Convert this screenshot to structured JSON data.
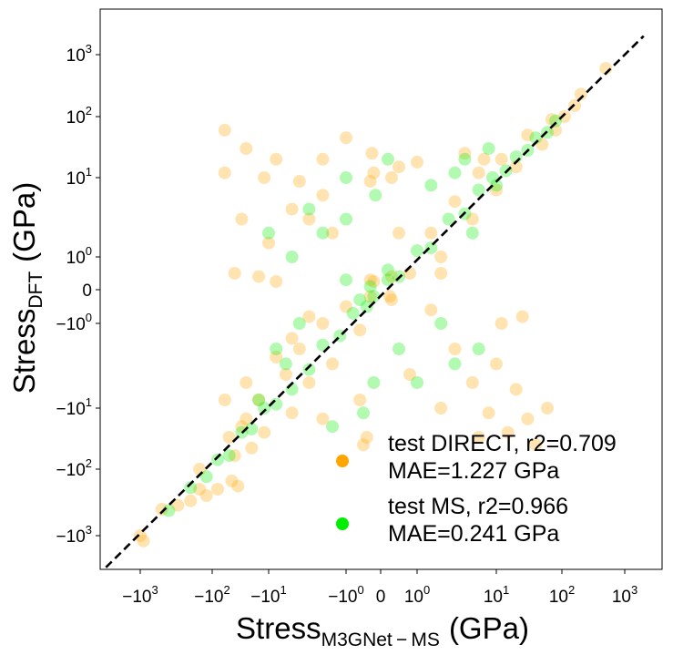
{
  "chart_data": {
    "type": "scatter",
    "scale": "symlog",
    "xlabel": {
      "base": "Stress",
      "subscript": "M3GNet − MS",
      "unit": "(GPa)"
    },
    "ylabel": {
      "base": "Stress",
      "subscript": "DFT",
      "unit": "(GPa)"
    },
    "xlim": [
      -5000,
      5000
    ],
    "ylim": [
      -5000,
      5000
    ],
    "x_ticks": [
      {
        "value": -1000,
        "base": "−10",
        "exp": "3"
      },
      {
        "value": -100,
        "base": "−10",
        "exp": "2"
      },
      {
        "value": -10,
        "base": "−10",
        "exp": "1"
      },
      {
        "value": -1,
        "base": "−10",
        "exp": "0"
      },
      {
        "value": 0,
        "base": "0",
        "exp": ""
      },
      {
        "value": 1,
        "base": "10",
        "exp": "0"
      },
      {
        "value": 10,
        "base": "10",
        "exp": "1"
      },
      {
        "value": 100,
        "base": "10",
        "exp": "2"
      },
      {
        "value": 1000,
        "base": "10",
        "exp": "3"
      }
    ],
    "y_ticks": [
      {
        "value": 1000,
        "base": "10",
        "exp": "3"
      },
      {
        "value": 100,
        "base": "10",
        "exp": "2"
      },
      {
        "value": 10,
        "base": "10",
        "exp": "1"
      },
      {
        "value": 1,
        "base": "10",
        "exp": "0"
      },
      {
        "value": 0,
        "base": "0",
        "exp": ""
      },
      {
        "value": -1,
        "base": "−10",
        "exp": "0"
      },
      {
        "value": -10,
        "base": "−10",
        "exp": "1"
      },
      {
        "value": -100,
        "base": "−10",
        "exp": "2"
      },
      {
        "value": -1000,
        "base": "−10",
        "exp": "3"
      }
    ],
    "parity_line": {
      "from": -3000,
      "to": 2000,
      "style": "dashed",
      "color": "#000000"
    },
    "series": [
      {
        "name": "test DIRECT",
        "r2": "0.709",
        "mae": "1.227 GPa",
        "color": "#ffa500",
        "alpha": 0.3,
        "points": [
          [
            -1000,
            -1000
          ],
          [
            -900,
            -1200
          ],
          [
            -500,
            -400
          ],
          [
            -300,
            -350
          ],
          [
            -150,
            -100
          ],
          [
            -120,
            -250
          ],
          [
            -80,
            -200
          ],
          [
            -50,
            -30
          ],
          [
            -40,
            -60
          ],
          [
            -25,
            -15
          ],
          [
            -20,
            -45
          ],
          [
            -15,
            -8
          ],
          [
            -12,
            -25
          ],
          [
            -6,
            -4
          ],
          [
            -5,
            -12
          ],
          [
            -4,
            -2
          ],
          [
            -3,
            -5
          ],
          [
            -2,
            -1
          ],
          [
            -1.5,
            -3
          ],
          [
            -1,
            -0.5
          ],
          [
            -0.6,
            -1.2
          ],
          [
            -0.3,
            -0.2
          ],
          [
            0.3,
            0.4
          ],
          [
            0.8,
            0.5
          ],
          [
            1.5,
            2
          ],
          [
            2,
            1
          ],
          [
            3,
            5
          ],
          [
            5,
            3
          ],
          [
            6,
            12
          ],
          [
            10,
            7
          ],
          [
            12,
            20
          ],
          [
            20,
            15
          ],
          [
            30,
            50
          ],
          [
            50,
            35
          ],
          [
            70,
            90
          ],
          [
            80,
            60
          ],
          [
            110,
            100
          ],
          [
            160,
            150
          ],
          [
            200,
            230
          ],
          [
            500,
            600
          ],
          [
            -0.3,
            9
          ],
          [
            -0.2,
            12
          ],
          [
            -0.25,
            25
          ],
          [
            -60,
            60
          ],
          [
            -60,
            12
          ],
          [
            -25,
            30
          ],
          [
            -12,
            10
          ],
          [
            -8,
            20
          ],
          [
            -5,
            4
          ],
          [
            -4,
            9
          ],
          [
            -3,
            3
          ],
          [
            -1.5,
            2
          ],
          [
            -2,
            6
          ],
          [
            -10,
            1.5
          ],
          [
            -30,
            3
          ],
          [
            -40,
            0.5
          ],
          [
            -15,
            0.4
          ],
          [
            -8,
            0.25
          ],
          [
            -2,
            20
          ],
          [
            -1,
            45
          ],
          [
            0.3,
            10
          ],
          [
            0.5,
            15
          ],
          [
            1,
            18
          ],
          [
            4,
            25
          ],
          [
            7,
            20
          ],
          [
            10,
            -3
          ],
          [
            20,
            -6
          ],
          [
            30,
            -15
          ],
          [
            40,
            -40
          ],
          [
            15,
            -25
          ],
          [
            8,
            -12
          ],
          [
            5,
            -5
          ],
          [
            3,
            -2
          ],
          [
            12,
            -1
          ],
          [
            25,
            -0.8
          ],
          [
            60,
            -10
          ],
          [
            6,
            -30
          ],
          [
            2,
            -10
          ],
          [
            1.5,
            -0.6
          ],
          [
            0.8,
            -4
          ],
          [
            -0.5,
            -40
          ],
          [
            -0.4,
            -30
          ],
          [
            -2,
            -15
          ],
          [
            -0.6,
            -8
          ],
          [
            -30,
            -20
          ],
          [
            -45,
            -150
          ],
          [
            -35,
            -180
          ],
          [
            -200,
            -300
          ],
          [
            -150,
            -200
          ],
          [
            -5,
            -1.5
          ],
          [
            -3,
            -0.8
          ],
          [
            -8,
            -2.5
          ],
          [
            -25,
            -5
          ],
          [
            -60,
            -8
          ],
          [
            -0.3,
            0.3
          ],
          [
            0.3,
            -0.3
          ],
          [
            -0.2,
            0.25
          ],
          [
            0.25,
            -0.2
          ],
          [
            2,
            0.5
          ],
          [
            0.5,
            2
          ]
        ]
      },
      {
        "name": "test MS",
        "r2": "0.966",
        "mae": "0.241 GPa",
        "color": "#00ee00",
        "alpha": 0.3,
        "points": [
          [
            -400,
            -420
          ],
          [
            -200,
            -190
          ],
          [
            -120,
            -130
          ],
          [
            -80,
            -70
          ],
          [
            -50,
            -60
          ],
          [
            -30,
            -25
          ],
          [
            -20,
            -22
          ],
          [
            -12,
            -10
          ],
          [
            -8,
            -9
          ],
          [
            -5,
            -6
          ],
          [
            -3,
            -3.5
          ],
          [
            -2,
            -1.8
          ],
          [
            -1.2,
            -1.4
          ],
          [
            -0.8,
            -0.7
          ],
          [
            -0.4,
            -0.5
          ],
          [
            -0.2,
            -0.2
          ],
          [
            0.2,
            0.3
          ],
          [
            0.5,
            0.4
          ],
          [
            1,
            1.2
          ],
          [
            1.5,
            1.3
          ],
          [
            2.5,
            3
          ],
          [
            4,
            3.5
          ],
          [
            6,
            7
          ],
          [
            9,
            10
          ],
          [
            14,
            13
          ],
          [
            20,
            22
          ],
          [
            30,
            28
          ],
          [
            40,
            45
          ],
          [
            60,
            55
          ],
          [
            80,
            85
          ],
          [
            -3,
            4
          ],
          [
            -2,
            2
          ],
          [
            -1,
            3
          ],
          [
            -4,
            -1
          ],
          [
            -1,
            10
          ],
          [
            1.5,
            8
          ],
          [
            2,
            -1
          ],
          [
            3,
            -3
          ],
          [
            0.5,
            -2
          ],
          [
            0.2,
            20
          ],
          [
            -0.15,
            6
          ],
          [
            -0.2,
            -5
          ],
          [
            -6,
            -3
          ],
          [
            -8,
            -2
          ],
          [
            -10,
            2
          ],
          [
            -5,
            1
          ],
          [
            3,
            12
          ],
          [
            5,
            2
          ],
          [
            4,
            20
          ],
          [
            -0.3,
            0.1
          ],
          [
            0.2,
            0.6
          ],
          [
            6,
            -2
          ],
          [
            10,
            8
          ],
          [
            -0.6,
            -0.3
          ],
          [
            -15,
            -8
          ],
          [
            8,
            30
          ],
          [
            -1.5,
            -20
          ],
          [
            -0.5,
            -12
          ],
          [
            1,
            -5
          ],
          [
            -1,
            0.3
          ]
        ]
      }
    ],
    "legend": {
      "position": "lower-right"
    }
  },
  "legend_items": [
    {
      "line1": "test DIRECT, r2=0.709",
      "line2": "MAE=1.227 GPa"
    },
    {
      "line1": "test MS, r2=0.966",
      "line2": "MAE=0.241 GPa"
    }
  ]
}
